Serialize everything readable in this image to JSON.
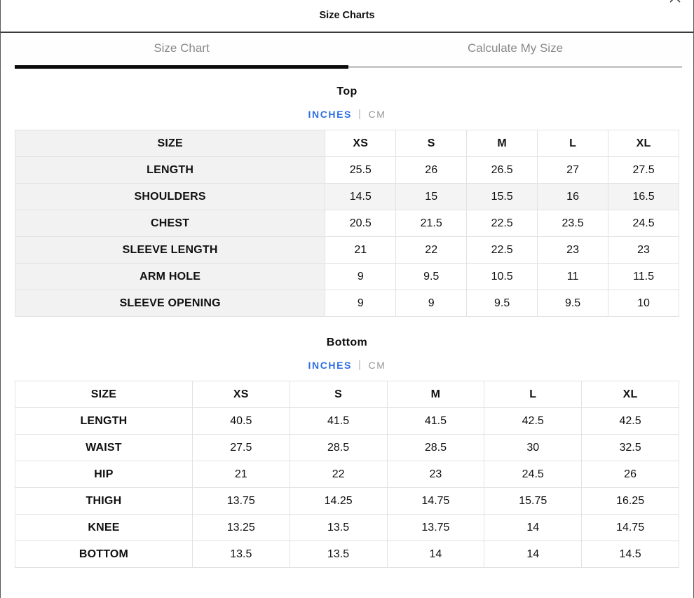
{
  "dialog": {
    "title": "Size Charts",
    "close_icon": "x"
  },
  "tabs": [
    {
      "label": "Size Chart",
      "active": true
    },
    {
      "label": "Calculate My Size",
      "active": false
    }
  ],
  "colors": {
    "accent_blue": "#2e6fe4",
    "active_tab_underline": "#0b0b0b",
    "inactive_tab_underline": "#c9c9c9",
    "muted_text": "#898989",
    "shaded_cell": "#f3f3f4",
    "table_border": "#e2e2e2"
  },
  "sections": [
    {
      "heading": "Top",
      "units": {
        "primary": "INCHES",
        "separator": "|",
        "secondary": "CM"
      },
      "table": {
        "header": [
          "SIZE",
          "XS",
          "S",
          "M",
          "L",
          "XL"
        ],
        "rows": [
          {
            "label": "LENGTH",
            "values": [
              "25.5",
              "26",
              "26.5",
              "27",
              "27.5"
            ]
          },
          {
            "label": "SHOULDERS",
            "values": [
              "14.5",
              "15",
              "15.5",
              "16",
              "16.5"
            ],
            "shaded": true
          },
          {
            "label": "CHEST",
            "values": [
              "20.5",
              "21.5",
              "22.5",
              "23.5",
              "24.5"
            ]
          },
          {
            "label": "SLEEVE LENGTH",
            "values": [
              "21",
              "22",
              "22.5",
              "23",
              "23"
            ]
          },
          {
            "label": "ARM HOLE",
            "values": [
              "9",
              "9.5",
              "10.5",
              "11",
              "11.5"
            ]
          },
          {
            "label": "SLEEVE OPENING",
            "values": [
              "9",
              "9",
              "9.5",
              "9.5",
              "10"
            ]
          }
        ]
      }
    },
    {
      "heading": "Bottom",
      "units": {
        "primary": "INCHES",
        "separator": "|",
        "secondary": "CM"
      },
      "table": {
        "header": [
          "SIZE",
          "XS",
          "S",
          "M",
          "L",
          "XL"
        ],
        "rows": [
          {
            "label": "LENGTH",
            "values": [
              "40.5",
              "41.5",
              "41.5",
              "42.5",
              "42.5"
            ]
          },
          {
            "label": "WAIST",
            "values": [
              "27.5",
              "28.5",
              "28.5",
              "30",
              "32.5"
            ]
          },
          {
            "label": "HIP",
            "values": [
              "21",
              "22",
              "23",
              "24.5",
              "26"
            ]
          },
          {
            "label": "THIGH",
            "values": [
              "13.75",
              "14.25",
              "14.75",
              "15.75",
              "16.25"
            ]
          },
          {
            "label": "KNEE",
            "values": [
              "13.25",
              "13.5",
              "13.75",
              "14",
              "14.75"
            ]
          },
          {
            "label": "BOTTOM",
            "values": [
              "13.5",
              "13.5",
              "14",
              "14",
              "14.5"
            ]
          }
        ]
      }
    }
  ]
}
